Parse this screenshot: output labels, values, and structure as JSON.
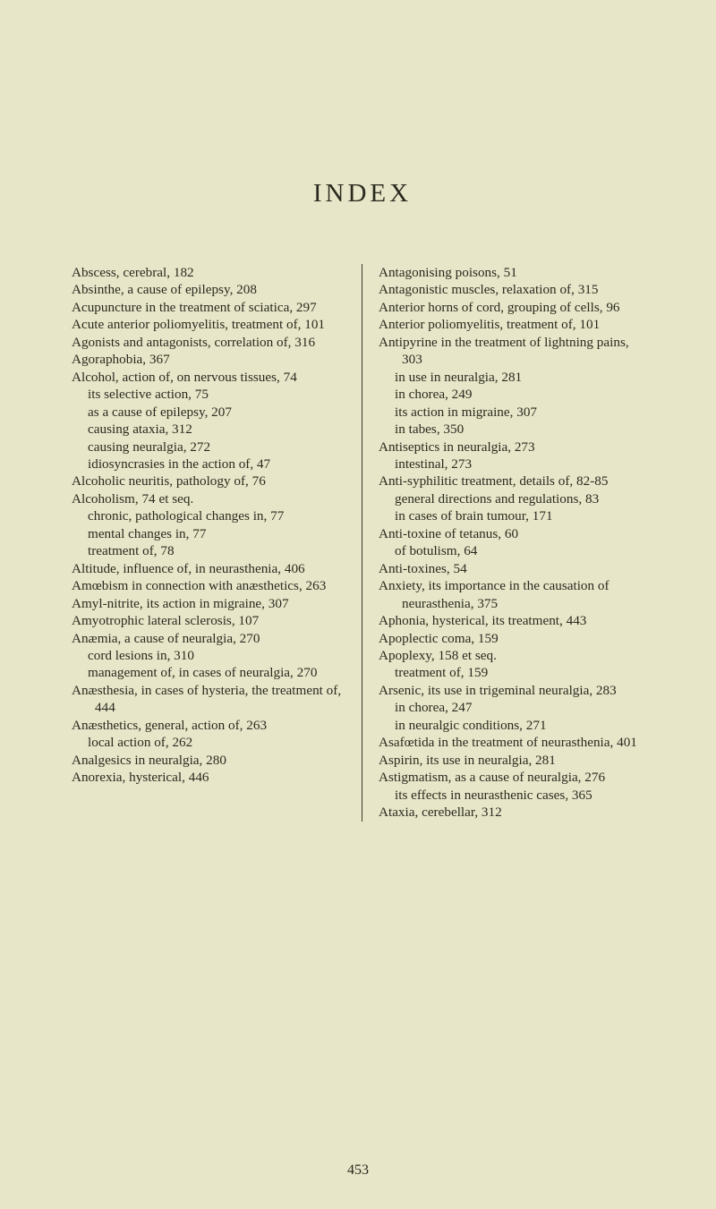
{
  "title": "INDEX",
  "folio": "453",
  "left": [
    {
      "t": "Abscess, cerebral, 182",
      "c": "entry"
    },
    {
      "t": "Absinthe, a cause of epilepsy, 208",
      "c": "entry"
    },
    {
      "t": "Acupuncture in the treatment of sciatica, 297",
      "c": "entry"
    },
    {
      "t": "Acute anterior poliomyelitis, treatment of, 101",
      "c": "entry"
    },
    {
      "t": "Agonists and antagonists, correlation of, 316",
      "c": "entry"
    },
    {
      "t": "Agoraphobia, 367",
      "c": "entry"
    },
    {
      "t": "Alcohol, action of, on nervous tissues, 74",
      "c": "entry"
    },
    {
      "t": "its selective action, 75",
      "c": "sub1"
    },
    {
      "t": "as a cause of epilepsy, 207",
      "c": "sub1"
    },
    {
      "t": "causing ataxia, 312",
      "c": "sub1"
    },
    {
      "t": "causing neuralgia, 272",
      "c": "sub1"
    },
    {
      "t": "idiosyncrasies in the action of, 47",
      "c": "sub1"
    },
    {
      "t": "Alcoholic neuritis, pathology of, 76",
      "c": "entry"
    },
    {
      "t": "Alcoholism, 74 et seq.",
      "c": "entry"
    },
    {
      "t": "chronic, pathological changes in, 77",
      "c": "sub1"
    },
    {
      "t": "mental changes in, 77",
      "c": "sub1"
    },
    {
      "t": "treatment of, 78",
      "c": "sub1"
    },
    {
      "t": "Altitude, influence of, in neurasthenia, 406",
      "c": "entry"
    },
    {
      "t": "Amœbism in connection with anæsthetics, 263",
      "c": "entry"
    },
    {
      "t": "Amyl-nitrite, its action in migraine, 307",
      "c": "entry"
    },
    {
      "t": "Amyotrophic lateral sclerosis, 107",
      "c": "entry"
    },
    {
      "t": "Anæmia, a cause of neuralgia, 270",
      "c": "entry"
    },
    {
      "t": "cord lesions in, 310",
      "c": "sub1"
    },
    {
      "t": "management of, in cases of neuralgia, 270",
      "c": "sub1"
    },
    {
      "t": "Anæsthesia, in cases of hysteria, the treatment of, 444",
      "c": "entry"
    },
    {
      "t": "Anæsthetics, general, action of, 263",
      "c": "entry"
    },
    {
      "t": "local action of, 262",
      "c": "sub1"
    },
    {
      "t": "Analgesics in neuralgia, 280",
      "c": "entry"
    },
    {
      "t": "Anorexia, hysterical, 446",
      "c": "entry"
    }
  ],
  "right": [
    {
      "t": "Antagonising poisons, 51",
      "c": "entry"
    },
    {
      "t": "Antagonistic muscles, relaxation of, 315",
      "c": "entry"
    },
    {
      "t": "Anterior horns of cord, grouping of cells, 96",
      "c": "entry"
    },
    {
      "t": "Anterior poliomyelitis, treatment of, 101",
      "c": "entry"
    },
    {
      "t": "Antipyrine in the treatment of lightning pains, 303",
      "c": "entry"
    },
    {
      "t": "in use in neuralgia, 281",
      "c": "sub1"
    },
    {
      "t": "in chorea, 249",
      "c": "sub1"
    },
    {
      "t": "its action in migraine, 307",
      "c": "sub1"
    },
    {
      "t": "in tabes, 350",
      "c": "sub1"
    },
    {
      "t": "Antiseptics in neuralgia, 273",
      "c": "entry"
    },
    {
      "t": "intestinal, 273",
      "c": "sub1"
    },
    {
      "t": "Anti-syphilitic treatment, details of, 82-85",
      "c": "entry"
    },
    {
      "t": "general directions and regulations, 83",
      "c": "sub1"
    },
    {
      "t": "in cases of brain tumour, 171",
      "c": "sub1"
    },
    {
      "t": "Anti-toxine of tetanus, 60",
      "c": "entry"
    },
    {
      "t": "of botulism, 64",
      "c": "sub1"
    },
    {
      "t": "Anti-toxines, 54",
      "c": "entry"
    },
    {
      "t": "Anxiety, its importance in the causation of neurasthenia, 375",
      "c": "entry"
    },
    {
      "t": "Aphonia, hysterical, its treatment, 443",
      "c": "entry"
    },
    {
      "t": "Apoplectic coma, 159",
      "c": "entry"
    },
    {
      "t": "Apoplexy, 158 et seq.",
      "c": "entry"
    },
    {
      "t": "treatment of, 159",
      "c": "sub1"
    },
    {
      "t": "Arsenic, its use in trigeminal neuralgia, 283",
      "c": "entry"
    },
    {
      "t": "in chorea, 247",
      "c": "sub1"
    },
    {
      "t": "in neuralgic conditions, 271",
      "c": "sub1"
    },
    {
      "t": "Asafœtida in the treatment of neurasthenia, 401",
      "c": "entry"
    },
    {
      "t": "Aspirin, its use in neuralgia, 281",
      "c": "entry"
    },
    {
      "t": "Astigmatism, as a cause of neuralgia, 276",
      "c": "entry"
    },
    {
      "t": "its effects in neurasthenic cases, 365",
      "c": "sub1"
    },
    {
      "t": "Ataxia, cerebellar, 312",
      "c": "entry"
    }
  ]
}
